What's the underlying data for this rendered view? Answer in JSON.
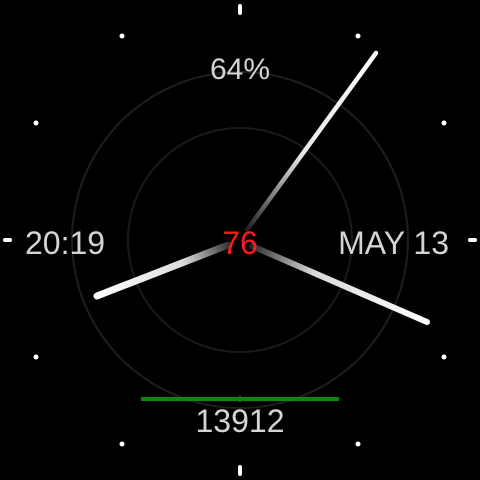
{
  "watch_face": {
    "battery": "64%",
    "time": "20:19",
    "date": "MAY 13",
    "center_value": "76",
    "steps": "13912",
    "steps_progress": 1.0
  },
  "colors": {
    "background": "#000000",
    "text": "#d4d4d4",
    "center_value": "#ff1a1a",
    "steps_bar": "#0a8a0a",
    "hands": "#ffffff",
    "markers": "#ffffff"
  },
  "hands": {
    "hour_icon": "hour-hand",
    "minute_icon": "minute-hand",
    "second_icon": "second-hand"
  }
}
